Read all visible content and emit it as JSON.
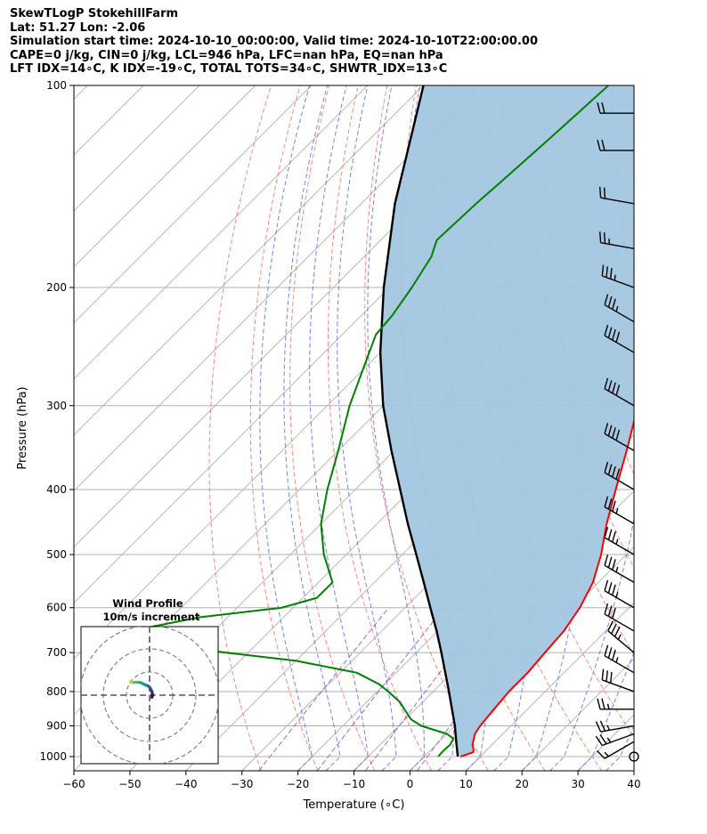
{
  "header": {
    "line1": "SkewTLogP StokehillFarm",
    "line2": "Lat: 51.27   Lon: -2.06",
    "line3": "Simulation start time: 2024-10-10_00:00:00, Valid time: 2024-10-10T22:00:00.00",
    "line4": "CAPE=0 j/kg, CIN=0 j/kg, LCL=946 hPa, LFC=nan hPa, EQ=nan hPa",
    "line5": "LFT IDX=14∘C, K IDX=-19∘C, TOTAL TOTS=34∘C, SHWTR_IDX=13∘C"
  },
  "chart_data": {
    "type": "line",
    "xlabel": "Temperature (∘C)",
    "ylabel": "Pressure (hPa)",
    "xlim": [
      -60,
      40
    ],
    "ylim": [
      1050,
      100
    ],
    "y_scale": "log",
    "x_ticks": [
      -60,
      -50,
      -40,
      -30,
      -20,
      -10,
      0,
      10,
      20,
      30,
      40
    ],
    "x_tick_labels": [
      "−60",
      "−50",
      "−40",
      "−30",
      "−20",
      "−10",
      "0",
      "10",
      "20",
      "30",
      "40"
    ],
    "y_ticks": [
      1000,
      900,
      800,
      700,
      600,
      500,
      400,
      300,
      200,
      100
    ],
    "y_tick_labels": [
      "1000",
      "900",
      "800",
      "700",
      "600",
      "500",
      "400",
      "300",
      "200",
      "100"
    ],
    "grid": true,
    "colors": {
      "temperature": "#ff0000",
      "dewpoint": "#008000",
      "parcel": "#000000",
      "shade": "#a3c6e0",
      "dry_adiabat": "#ff6b6b",
      "moist_adiabat": "#5a6cf0",
      "mixing_ratio": "#8e44ad",
      "isotherm": "#b0b0b0"
    },
    "series": [
      {
        "key": "temperature",
        "pressure": [
          1000,
          985,
          975,
          960,
          925,
          900,
          850,
          800,
          750,
          700,
          650,
          600,
          550,
          500,
          450,
          400,
          350,
          300,
          250,
          235,
          220,
          210,
          200,
          180,
          160,
          150,
          140,
          130,
          120,
          110,
          100
        ],
        "values": [
          6.5,
          8.0,
          7.5,
          6.5,
          5.0,
          4.5,
          4.0,
          3.5,
          3.5,
          3.0,
          2.5,
          1.2,
          -1.0,
          -4.5,
          -9.0,
          -13.5,
          -18.5,
          -24.5,
          -31.5,
          -34.8,
          -37.5,
          -39.0,
          -39.5,
          -42.0,
          -45.0,
          -46.5,
          -47.5,
          -48.5,
          -49.5,
          -50.5,
          -52.0
        ]
      },
      {
        "key": "dewpoint",
        "pressure": [
          1000,
          985,
          975,
          960,
          940,
          925,
          900,
          880,
          850,
          830,
          800,
          780,
          750,
          720,
          700,
          680,
          650,
          620,
          600,
          580,
          550,
          500,
          450,
          400,
          350,
          300,
          250,
          235,
          220,
          200,
          180,
          170,
          150,
          140,
          130,
          120,
          110,
          100
        ],
        "values": [
          2.5,
          2.4,
          2.4,
          2.5,
          2.0,
          0.0,
          -6.0,
          -9.0,
          -12.0,
          -14.0,
          -18.0,
          -21.0,
          -27.0,
          -40.0,
          -54.0,
          -66.0,
          -75.0,
          -65.0,
          -52.0,
          -47.5,
          -47.5,
          -54.0,
          -60.0,
          -65.0,
          -70.0,
          -76.0,
          -82.0,
          -84.0,
          -84.5,
          -86.0,
          -88.0,
          -90.0,
          -89.5,
          -89.0,
          -88.5,
          -88.0,
          -87.5,
          -87.0
        ]
      },
      {
        "key": "parcel",
        "pressure": [
          1000,
          946,
          900,
          850,
          800,
          750,
          700,
          650,
          600,
          550,
          500,
          450,
          400,
          350,
          300,
          250,
          200,
          150,
          100
        ],
        "values": [
          6.0,
          2.8,
          0.0,
          -3.5,
          -7.2,
          -11.2,
          -15.5,
          -20.2,
          -25.5,
          -31.2,
          -37.5,
          -44.5,
          -52.0,
          -60.5,
          -70.0,
          -80.0,
          -91.0,
          -104.0,
          -120.0
        ]
      }
    ],
    "wind_barbs": {
      "pressure": [
        1000,
        950,
        925,
        900,
        850,
        800,
        750,
        700,
        650,
        600,
        550,
        500,
        450,
        400,
        350,
        300,
        250,
        225,
        200,
        175,
        150,
        125,
        110
      ],
      "speed_kt": [
        0,
        15,
        25,
        25,
        25,
        30,
        35,
        35,
        30,
        35,
        35,
        35,
        35,
        40,
        40,
        40,
        40,
        35,
        35,
        25,
        20,
        20,
        20
      ],
      "direction_deg": [
        0,
        240,
        250,
        260,
        270,
        290,
        300,
        310,
        300,
        300,
        300,
        300,
        300,
        300,
        300,
        300,
        300,
        300,
        290,
        280,
        280,
        270,
        270
      ]
    },
    "inset": {
      "title": "Wind Profile",
      "subtitle": "10m/s increment",
      "rings": [
        10,
        20,
        30
      ],
      "u": [
        1.0,
        1.2,
        1.2,
        1.1,
        0.9,
        0.6,
        0.3,
        -0.2,
        -0.8,
        -1.2,
        -1.6,
        -2.2,
        -3.0,
        -3.8,
        -4.6,
        -5.4,
        -6.4,
        -7.4,
        -8.0,
        -8.2,
        -8.1,
        -8.0
      ],
      "v": [
        -1.0,
        -0.3,
        0.5,
        1.2,
        1.8,
        2.4,
        3.0,
        3.6,
        4.0,
        4.2,
        4.3,
        4.6,
        5.0,
        5.4,
        5.5,
        5.6,
        5.5,
        5.5,
        5.6,
        5.8,
        5.6,
        5.4
      ]
    }
  }
}
